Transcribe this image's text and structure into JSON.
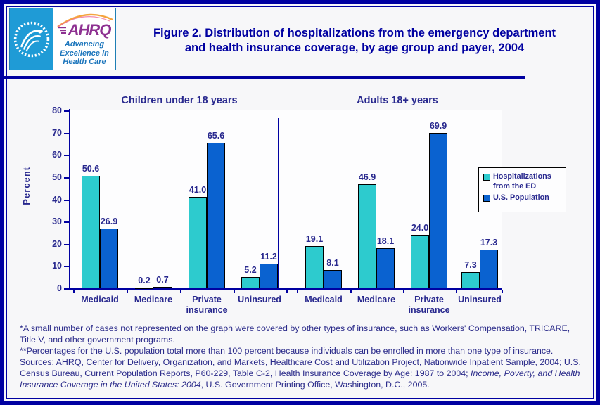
{
  "header": {
    "logo": {
      "acronym": "AHRQ",
      "tagline_lines": [
        "Advancing",
        "Excellence in",
        "Health Care"
      ],
      "hhs_ring_text": "DEPARTMENT OF HEALTH & HUMAN SERVICES • USA"
    },
    "title_line1": "Figure 2. Distribution of hospitalizations from the emergency department",
    "title_line2": "and health insurance coverage, by age group and payer, 2004"
  },
  "chart_data": {
    "type": "bar",
    "ylabel": "Percent",
    "ylim": [
      0,
      80
    ],
    "yticks": [
      0,
      10,
      20,
      30,
      40,
      50,
      60,
      70,
      80
    ],
    "grid": false,
    "legend_position": "right",
    "panels": [
      {
        "title": "Children under 18 years",
        "categories": [
          "Medicaid",
          "Medicare",
          "Private insurance",
          "Uninsured"
        ],
        "series": [
          {
            "name": "Hospitalizations from the ED",
            "color": "#2DCBCE",
            "values": [
              50.6,
              0.2,
              41.0,
              5.2
            ]
          },
          {
            "name": "U.S. Population",
            "color": "#0A62D0",
            "values": [
              26.9,
              0.7,
              65.6,
              11.2
            ]
          }
        ]
      },
      {
        "title": "Adults 18+ years",
        "categories": [
          "Medicaid",
          "Medicare",
          "Private insurance",
          "Uninsured"
        ],
        "series": [
          {
            "name": "Hospitalizations from the ED",
            "color": "#2DCBCE",
            "values": [
              19.1,
              46.9,
              24.0,
              7.3
            ]
          },
          {
            "name": "U.S. Population",
            "color": "#0A62D0",
            "values": [
              8.1,
              18.1,
              69.9,
              17.3
            ]
          }
        ]
      }
    ],
    "legend": [
      {
        "label": "Hospitalizations from the ED",
        "color": "#2DCBCE"
      },
      {
        "label": "U.S. Population",
        "color": "#0A62D0"
      }
    ]
  },
  "footnotes": {
    "note1": "*A small number of cases not represented on the graph were covered by other types of insurance, such as Workers' Compensation, TRICARE, Title V, and other government programs.",
    "note2": "**Percentages for the U.S. population total more than 100 percent because individuals can be enrolled in more than one type of insurance.",
    "sources_prefix": "Sources: AHRQ, Center for Delivery, Organization, and Markets, Healthcare Cost and Utilization Project, Nationwide Inpatient Sample, 2004; U.S. Census Bureau, Current Population Reports, P60-229, Table C-2, Health Insurance Coverage by Age: 1987 to 2004; ",
    "sources_italic": "Income, Poverty, and Health Insurance Coverage in the United States: 2004",
    "sources_suffix": ", U.S. Government Printing Office, Washington, D.C., 2005."
  },
  "colors": {
    "accent_navy": "#0000A1",
    "chart_text": "#28288E",
    "series_ed": "#2DCBCE",
    "series_population": "#0A62D0",
    "logo_blue": "#1F9BD6",
    "logo_purple": "#8E3191"
  }
}
